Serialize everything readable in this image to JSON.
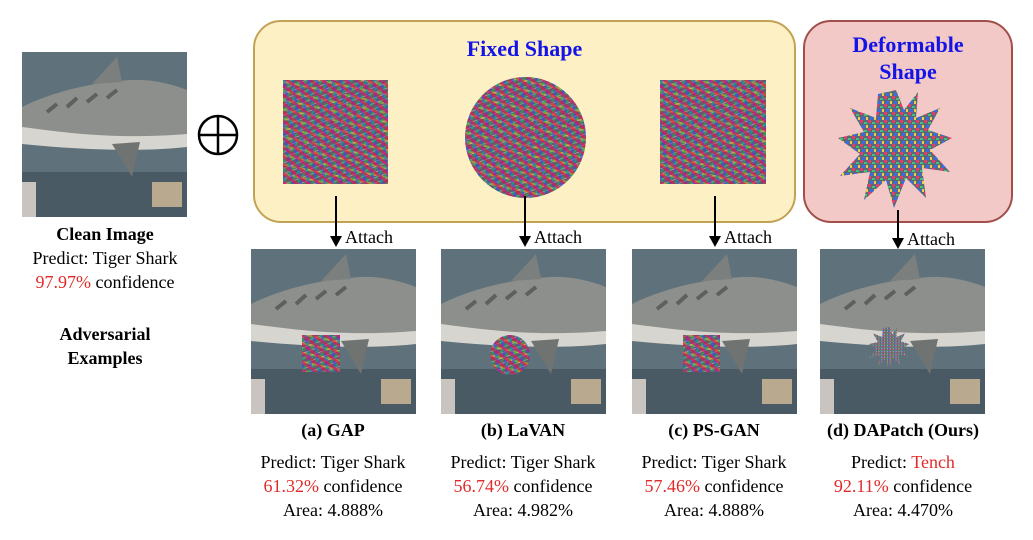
{
  "colors": {
    "fixed_box_fill": "#fcf0c4",
    "fixed_box_border": "#c2a355",
    "deform_box_fill": "#f2c9c7",
    "deform_box_border": "#a24f4b",
    "title_blue": "#1414e6",
    "highlight_red": "#e32a2a"
  },
  "clean": {
    "title": "Clean Image",
    "predict_prefix": "Predict: ",
    "predict_class": "Tiger Shark",
    "confidence_value": "97.97%",
    "confidence_suffix": " confidence"
  },
  "adversarial_label_line1": "Adversarial",
  "adversarial_label_line2": "Examples",
  "fixed_box_title": "Fixed Shape",
  "deform_box_title_line1": "Deformable",
  "deform_box_title_line2": "Shape",
  "attach_label": "Attach",
  "examples": [
    {
      "caption": "(a) GAP",
      "predict_prefix": "Predict: ",
      "predict_class": "Tiger Shark",
      "class_is_red": false,
      "confidence_value": "61.32%",
      "confidence_suffix": " confidence",
      "area": "Area: 4.888%"
    },
    {
      "caption": "(b) LaVAN",
      "predict_prefix": "Predict: ",
      "predict_class": "Tiger Shark",
      "class_is_red": false,
      "confidence_value": "56.74%",
      "confidence_suffix": " confidence",
      "area": "Area: 4.982%"
    },
    {
      "caption": "(c) PS-GAN",
      "predict_prefix": "Predict: ",
      "predict_class": "Tiger Shark",
      "class_is_red": false,
      "confidence_value": "57.46%",
      "confidence_suffix": " confidence",
      "area": "Area: 4.888%"
    },
    {
      "caption": "(d) DAPatch (Ours)",
      "predict_prefix": "Predict: ",
      "predict_class": "Tench",
      "class_is_red": true,
      "confidence_value": "92.11%",
      "confidence_suffix": " confidence",
      "area": "Area: 4.470%"
    }
  ]
}
